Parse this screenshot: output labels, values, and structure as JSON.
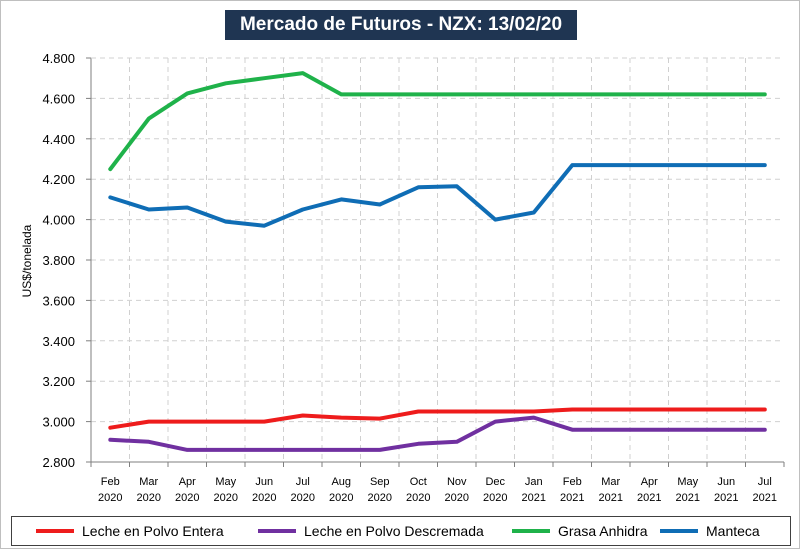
{
  "chart_data": {
    "type": "line",
    "title": "Mercado de Futuros - NZX: 13/02/20",
    "xlabel": "",
    "ylabel": "US$/tonelada",
    "ylim": [
      2800,
      4800
    ],
    "yticks": [
      2800,
      3000,
      3200,
      3400,
      3600,
      3800,
      4000,
      4200,
      4400,
      4600,
      4800
    ],
    "ytick_labels": [
      "2.800",
      "3.000",
      "3.200",
      "3.400",
      "3.600",
      "3.800",
      "4.000",
      "4.200",
      "4.400",
      "4.600",
      "4.800"
    ],
    "grid": true,
    "legend_position": "bottom",
    "categories": [
      [
        "Feb",
        "2020"
      ],
      [
        "Mar",
        "2020"
      ],
      [
        "Apr",
        "2020"
      ],
      [
        "May",
        "2020"
      ],
      [
        "Jun",
        "2020"
      ],
      [
        "Jul",
        "2020"
      ],
      [
        "Aug",
        "2020"
      ],
      [
        "Sep",
        "2020"
      ],
      [
        "Oct",
        "2020"
      ],
      [
        "Nov",
        "2020"
      ],
      [
        "Dec",
        "2020"
      ],
      [
        "Jan",
        "2021"
      ],
      [
        "Feb",
        "2021"
      ],
      [
        "Mar",
        "2021"
      ],
      [
        "Apr",
        "2021"
      ],
      [
        "May",
        "2021"
      ],
      [
        "Jun",
        "2021"
      ],
      [
        "Jul",
        "2021"
      ]
    ],
    "series": [
      {
        "name": "Leche en Polvo Entera",
        "color": "#ee1c1c",
        "values": [
          2970,
          3000,
          3000,
          3000,
          3000,
          3030,
          3020,
          3015,
          3050,
          3050,
          3050,
          3050,
          3060,
          3060,
          3060,
          3060,
          3060,
          3060
        ]
      },
      {
        "name": "Leche en Polvo Descremada",
        "color": "#7030a0",
        "values": [
          2910,
          2900,
          2860,
          2860,
          2860,
          2860,
          2860,
          2860,
          2890,
          2900,
          3000,
          3020,
          2960,
          2960,
          2960,
          2960,
          2960,
          2960
        ]
      },
      {
        "name": "Grasa Anhidra",
        "color": "#1fb24a",
        "values": [
          4250,
          4500,
          4625,
          4675,
          4700,
          4725,
          4620,
          4620,
          4620,
          4620,
          4620,
          4620,
          4620,
          4620,
          4620,
          4620,
          4620,
          4620
        ]
      },
      {
        "name": "Manteca",
        "color": "#0f6db5",
        "values": [
          4110,
          4050,
          4060,
          3990,
          3970,
          4050,
          4100,
          4075,
          4160,
          4165,
          4000,
          4035,
          4270,
          4270,
          4270,
          4270,
          4270,
          4270
        ]
      }
    ]
  }
}
